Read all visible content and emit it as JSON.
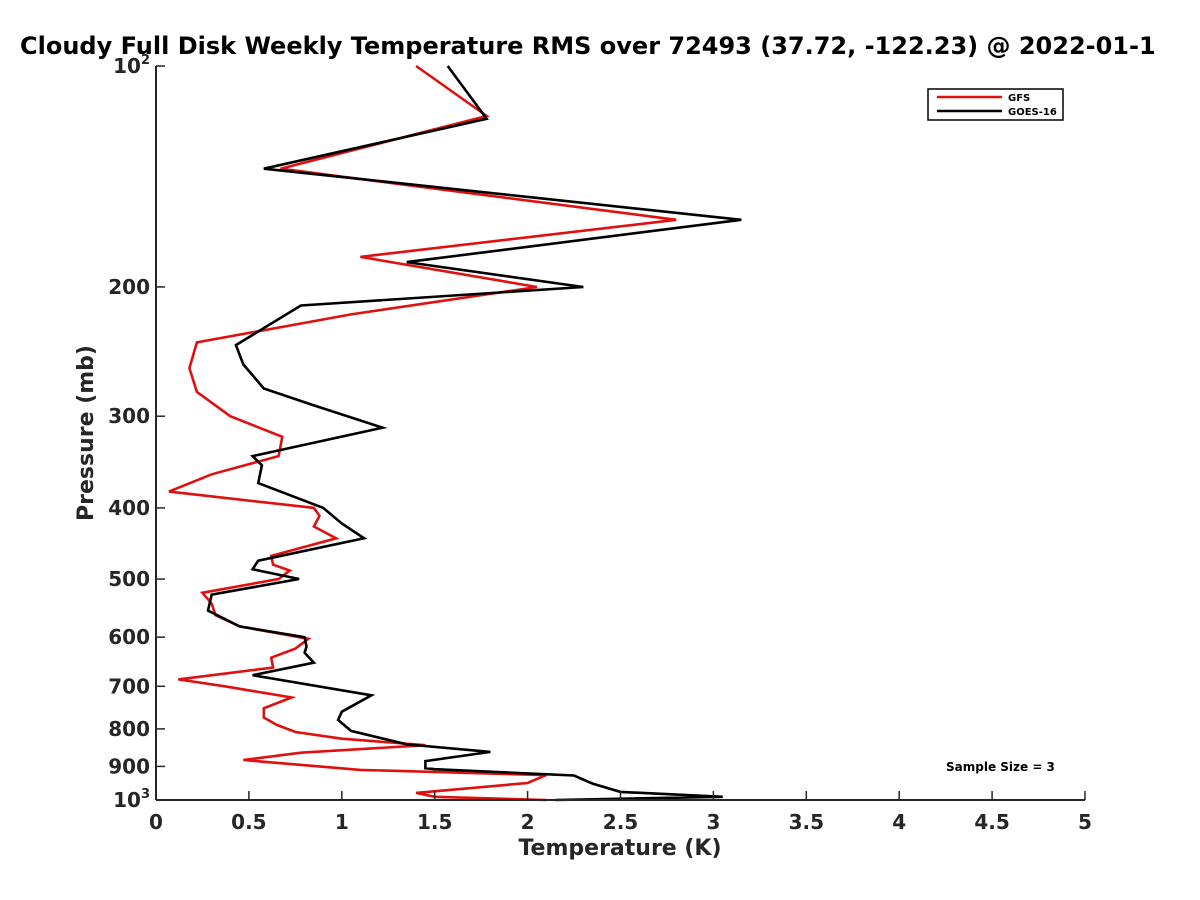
{
  "chart_data": {
    "type": "line",
    "title": "Cloudy Full Disk Weekly Temperature RMS over 72493 (37.72, -122.23) @ 2022-01-1",
    "xlabel": "Temperature (K)",
    "ylabel": "Pressure (mb)",
    "xlim": [
      0,
      5
    ],
    "ylim": [
      100,
      1000
    ],
    "y_scale": "log",
    "y_reversed": true,
    "grid": false,
    "legend_position": "top-right",
    "x_ticks": [
      {
        "value": 0,
        "label": "0"
      },
      {
        "value": 0.5,
        "label": "0.5"
      },
      {
        "value": 1,
        "label": "1"
      },
      {
        "value": 1.5,
        "label": "1.5"
      },
      {
        "value": 2,
        "label": "2"
      },
      {
        "value": 2.5,
        "label": "2.5"
      },
      {
        "value": 3,
        "label": "3"
      },
      {
        "value": 3.5,
        "label": "3.5"
      },
      {
        "value": 4,
        "label": "4"
      },
      {
        "value": 4.5,
        "label": "4.5"
      },
      {
        "value": 5,
        "label": "5"
      }
    ],
    "y_ticks": [
      {
        "value": 100,
        "label": "10",
        "exponent": "2"
      },
      {
        "value": 200,
        "label": "200"
      },
      {
        "value": 300,
        "label": "300"
      },
      {
        "value": 400,
        "label": "400"
      },
      {
        "value": 500,
        "label": "500"
      },
      {
        "value": 600,
        "label": "600"
      },
      {
        "value": 700,
        "label": "700"
      },
      {
        "value": 800,
        "label": "800"
      },
      {
        "value": 900,
        "label": "900"
      },
      {
        "value": 1000,
        "label": "10",
        "exponent": "3"
      }
    ],
    "annotation": "Sample Size = 3",
    "series": [
      {
        "name": "GFS",
        "color": "#e01010",
        "points": [
          [
            1.4,
            100
          ],
          [
            1.78,
            117
          ],
          [
            0.67,
            138
          ],
          [
            2.8,
            162
          ],
          [
            1.1,
            182
          ],
          [
            2.05,
            200
          ],
          [
            1.05,
            218
          ],
          [
            0.22,
            238
          ],
          [
            0.18,
            258
          ],
          [
            0.22,
            278
          ],
          [
            0.4,
            300
          ],
          [
            0.68,
            320
          ],
          [
            0.66,
            340
          ],
          [
            0.3,
            360
          ],
          [
            0.07,
            380
          ],
          [
            0.85,
            400
          ],
          [
            0.88,
            410
          ],
          [
            0.85,
            424
          ],
          [
            0.97,
            440
          ],
          [
            0.62,
            465
          ],
          [
            0.63,
            478
          ],
          [
            0.72,
            487
          ],
          [
            0.66,
            500
          ],
          [
            0.25,
            522
          ],
          [
            0.3,
            540
          ],
          [
            0.32,
            560
          ],
          [
            0.45,
            580
          ],
          [
            0.82,
            603
          ],
          [
            0.75,
            622
          ],
          [
            0.62,
            640
          ],
          [
            0.63,
            660
          ],
          [
            0.12,
            685
          ],
          [
            0.37,
            700
          ],
          [
            0.73,
            725
          ],
          [
            0.58,
            750
          ],
          [
            0.58,
            772
          ],
          [
            0.65,
            790
          ],
          [
            0.75,
            808
          ],
          [
            1.0,
            825
          ],
          [
            1.45,
            842
          ],
          [
            0.78,
            862
          ],
          [
            0.47,
            882
          ],
          [
            1.1,
            910
          ],
          [
            2.1,
            925
          ],
          [
            2.0,
            948
          ],
          [
            1.4,
            978
          ],
          [
            1.5,
            990
          ],
          [
            2.1,
            1000
          ]
        ]
      },
      {
        "name": "GOES-16",
        "color": "#000000",
        "points": [
          [
            1.57,
            100
          ],
          [
            1.78,
            118
          ],
          [
            0.58,
            138
          ],
          [
            3.15,
            162
          ],
          [
            1.35,
            185
          ],
          [
            2.3,
            200
          ],
          [
            0.78,
            212
          ],
          [
            0.65,
            222
          ],
          [
            0.43,
            240
          ],
          [
            0.47,
            255
          ],
          [
            0.58,
            275
          ],
          [
            0.85,
            290
          ],
          [
            1.22,
            311
          ],
          [
            0.52,
            340
          ],
          [
            0.57,
            350
          ],
          [
            0.55,
            370
          ],
          [
            0.9,
            400
          ],
          [
            1.0,
            420
          ],
          [
            1.12,
            440
          ],
          [
            0.55,
            472
          ],
          [
            0.52,
            485
          ],
          [
            0.77,
            500
          ],
          [
            0.3,
            525
          ],
          [
            0.28,
            552
          ],
          [
            0.45,
            580
          ],
          [
            0.8,
            600
          ],
          [
            0.81,
            618
          ],
          [
            0.8,
            630
          ],
          [
            0.85,
            650
          ],
          [
            0.52,
            676
          ],
          [
            1.16,
            720
          ],
          [
            1.0,
            758
          ],
          [
            0.98,
            778
          ],
          [
            1.05,
            805
          ],
          [
            1.35,
            840
          ],
          [
            1.8,
            860
          ],
          [
            1.45,
            885
          ],
          [
            1.45,
            905
          ],
          [
            1.5,
            908
          ],
          [
            2.25,
            926
          ],
          [
            2.35,
            950
          ],
          [
            2.5,
            975
          ],
          [
            3.05,
            990
          ],
          [
            2.15,
            1000
          ]
        ]
      }
    ]
  }
}
